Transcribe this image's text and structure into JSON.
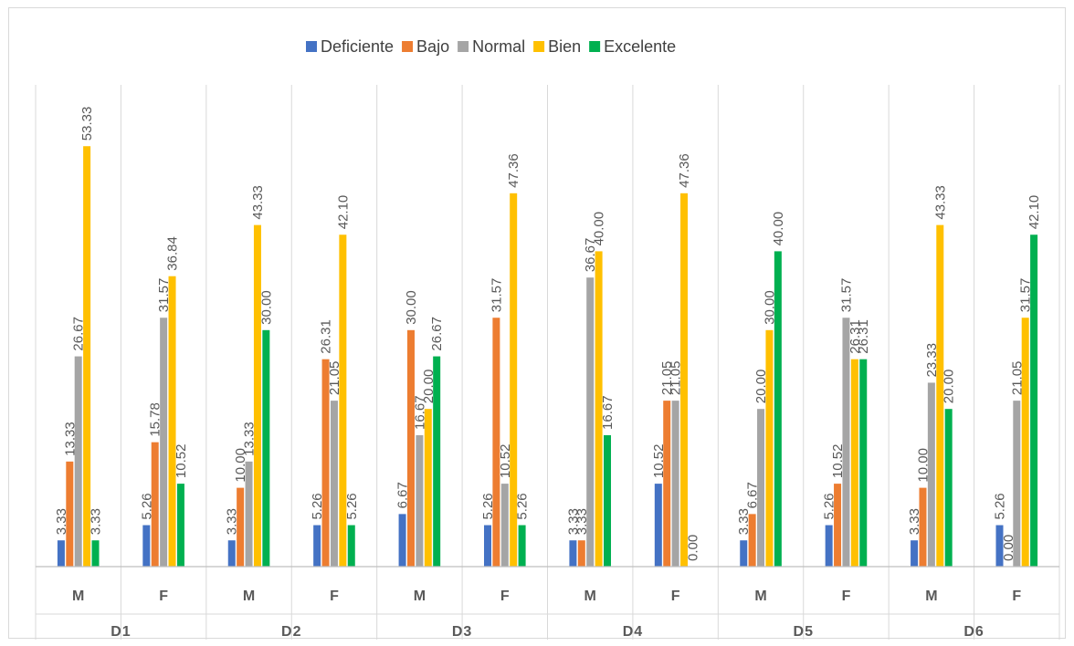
{
  "chart_data": {
    "type": "bar",
    "orientation": "vertical",
    "legend_position": "top",
    "grid": true,
    "ylim": [
      0,
      60
    ],
    "groups": [
      {
        "label": "D1",
        "categories": [
          {
            "label": "M",
            "values": [
              "3.33",
              "13.33",
              "26.67",
              "53.33",
              "3.33"
            ]
          },
          {
            "label": "F",
            "values": [
              "5.26",
              "15.78",
              "31.57",
              "36.84",
              "10.52"
            ]
          }
        ]
      },
      {
        "label": "D2",
        "categories": [
          {
            "label": "M",
            "values": [
              "3.33",
              "10.00",
              "13.33",
              "43.33",
              "30.00"
            ]
          },
          {
            "label": "F",
            "values": [
              "5.26",
              "26.31",
              "21.05",
              "42.10",
              "5.26"
            ]
          }
        ]
      },
      {
        "label": "D3",
        "categories": [
          {
            "label": "M",
            "values": [
              "6.67",
              "30.00",
              "16.67",
              "20.00",
              "26.67"
            ]
          },
          {
            "label": "F",
            "values": [
              "5.26",
              "31.57",
              "10.52",
              "47.36",
              "5.26"
            ]
          }
        ]
      },
      {
        "label": "D4",
        "categories": [
          {
            "label": "M",
            "values": [
              "3.33",
              "3.33",
              "36.67",
              "40.00",
              "16.67"
            ]
          },
          {
            "label": "F",
            "values": [
              "10.52",
              "21.05",
              "21.05",
              "47.36",
              "0.00"
            ]
          }
        ]
      },
      {
        "label": "D5",
        "categories": [
          {
            "label": "M",
            "values": [
              "3.33",
              "6.67",
              "20.00",
              "30.00",
              "40.00"
            ]
          },
          {
            "label": "F",
            "values": [
              "5.26",
              "10.52",
              "31.57",
              "26.31",
              "26.31"
            ]
          }
        ]
      },
      {
        "label": "D6",
        "categories": [
          {
            "label": "M",
            "values": [
              "3.33",
              "10.00",
              "23.33",
              "43.33",
              "20.00"
            ]
          },
          {
            "label": "F",
            "values": [
              "5.26",
              "0.00",
              "21.05",
              "31.57",
              "42.10"
            ]
          }
        ]
      }
    ],
    "series": [
      {
        "name": "Deficiente",
        "color": "#4472c4"
      },
      {
        "name": "Bajo",
        "color": "#ed7d31"
      },
      {
        "name": "Normal",
        "color": "#a5a5a5"
      },
      {
        "name": "Bien",
        "color": "#ffc000"
      },
      {
        "name": "Excelente",
        "color": "#00b050"
      }
    ]
  }
}
